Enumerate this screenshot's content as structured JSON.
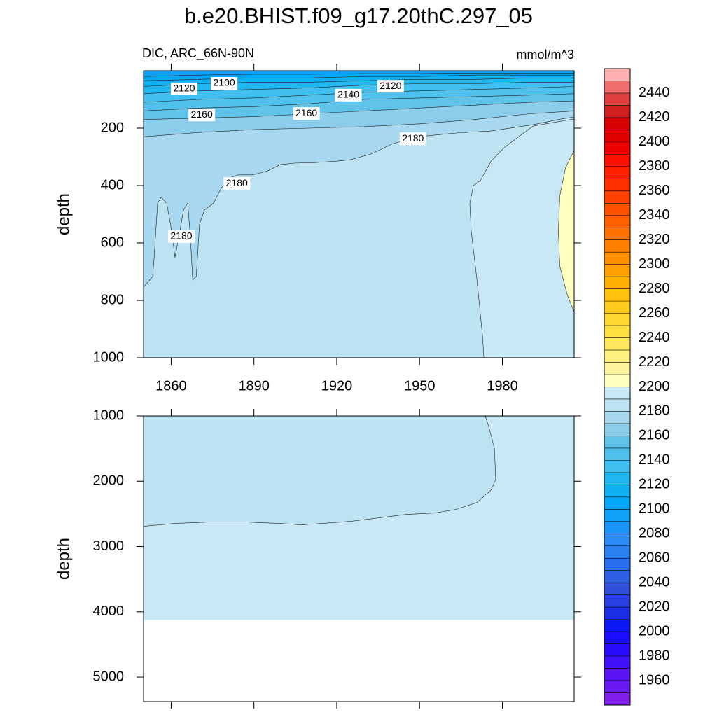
{
  "title": "b.e20.BHIST.f09_g17.20thC.297_05",
  "subtitle": "DIC, ARC_66N-90N",
  "units": "mmol/m^3",
  "chart_data": [
    {
      "type": "contour",
      "ylabel": "depth",
      "xlim": [
        1850,
        2006
      ],
      "xticks": [
        1860,
        1890,
        1920,
        1950,
        1980
      ],
      "show_xtick_labels": true,
      "ylim": [
        0,
        1000
      ],
      "yticks": [
        200,
        400,
        600,
        800,
        1000
      ],
      "fills": [
        {
          "level": 2180,
          "x": [
            1850,
            2006,
            2006,
            1850
          ],
          "y": [
            0,
            0,
            1000,
            1000
          ]
        },
        {
          "level": 2190,
          "x": [
            1973.3,
            1972.8,
            1970.8,
            1968.7,
            1968.2,
            1969.5,
            1972,
            1975.9,
            1980.9,
            1986,
            1991.1,
            1998.7,
            2006,
            2006
          ],
          "y": [
            1000,
            924,
            729,
            559,
            461,
            400,
            383,
            315,
            266,
            229,
            193,
            180,
            168,
            1000
          ]
        },
        {
          "level": 2200,
          "x": [
            2006,
            2002.9,
            2000.8,
            2000.3,
            2000.8,
            2003.4,
            2006
          ],
          "y": [
            278,
            337,
            436,
            559,
            680,
            778,
            841
          ]
        },
        {
          "level": 2170,
          "x": [
            1850,
            1853.3,
            1853.8,
            1855.1,
            1856.4,
            1858.4,
            1860.2,
            1861.4,
            1862.7,
            1864.5,
            1866,
            1867,
            1867.8,
            1869.1,
            1870.3,
            1872.1,
            1875.4,
            1878,
            1880.5,
            1884.3,
            1889.4,
            1894.5,
            1899.6,
            1904.7,
            1912.3,
            1919.9,
            1925,
            1932.6,
            1940.3,
            1950.4,
            1963.1,
            1975.9,
            1991.1,
            2001.3,
            2006,
            2006,
            1850
          ],
          "y": [
            754,
            717,
            656,
            461,
            441,
            461,
            559,
            651,
            583,
            485,
            461,
            583,
            729,
            717,
            534,
            485,
            461,
            412,
            376,
            363,
            363,
            351,
            327,
            322,
            320,
            315,
            310,
            290,
            254,
            229,
            217,
            210,
            188,
            168,
            161,
            0,
            0
          ]
        },
        {
          "level": 2160,
          "x": [
            1850,
            1870,
            1890,
            1910,
            1930,
            1950,
            1970,
            1990,
            2006,
            2006,
            1850
          ],
          "y": [
            230,
            215,
            205,
            200,
            195,
            185,
            170,
            150,
            140,
            0,
            0
          ]
        },
        {
          "level": 2150,
          "x": [
            1850,
            1870,
            1890,
            1910,
            1930,
            1950,
            1970,
            1990,
            2006,
            2006,
            1850
          ],
          "y": [
            170,
            165,
            160,
            150,
            140,
            130,
            120,
            110,
            105,
            0,
            0
          ]
        },
        {
          "level": 2140,
          "x": [
            1850,
            1870,
            1890,
            1910,
            1930,
            1950,
            1970,
            1990,
            2006,
            2006,
            1850
          ],
          "y": [
            140,
            130,
            125,
            115,
            100,
            95,
            90,
            85,
            80,
            0,
            0
          ]
        },
        {
          "level": 2130,
          "x": [
            1850,
            1870,
            1890,
            1910,
            1930,
            1950,
            1970,
            1990,
            2006,
            2006,
            1850
          ],
          "y": [
            110,
            100,
            95,
            85,
            75,
            70,
            65,
            60,
            55,
            0,
            0
          ]
        },
        {
          "level": 2120,
          "x": [
            1850,
            1870,
            1890,
            1910,
            1930,
            1950,
            1970,
            1990,
            2006,
            2006,
            1850
          ],
          "y": [
            80,
            70,
            65,
            60,
            50,
            45,
            45,
            40,
            40,
            0,
            0
          ]
        },
        {
          "level": 2110,
          "x": [
            1850,
            1870,
            1890,
            1910,
            1930,
            1950,
            1970,
            1990,
            2006,
            2006,
            1850
          ],
          "y": [
            55,
            45,
            40,
            40,
            35,
            30,
            30,
            25,
            25,
            0,
            0
          ]
        },
        {
          "level": 2100,
          "x": [
            1850,
            1870,
            1890,
            1910,
            1930,
            1950,
            1970,
            1990,
            2006,
            2006,
            1850
          ],
          "y": [
            35,
            30,
            25,
            25,
            20,
            20,
            15,
            15,
            15,
            0,
            0
          ]
        },
        {
          "level": 2090,
          "x": [
            1850,
            1870,
            1890,
            1910,
            1930,
            1950,
            1970,
            1990,
            2006,
            2006,
            1850
          ],
          "y": [
            20,
            15,
            12,
            12,
            10,
            10,
            8,
            8,
            8,
            0,
            0
          ]
        }
      ],
      "labels": [
        {
          "level": 2100,
          "x": 1879.2,
          "y": 44
        },
        {
          "level": 2120,
          "x": 1864.7,
          "y": 63
        },
        {
          "level": 2140,
          "x": 1924.2,
          "y": 85
        },
        {
          "level": 2120,
          "x": 1939.5,
          "y": 54
        },
        {
          "level": 2160,
          "x": 1871.1,
          "y": 154
        },
        {
          "level": 2160,
          "x": 1909,
          "y": 149
        },
        {
          "level": 2180,
          "x": 1947.6,
          "y": 237
        },
        {
          "level": 2180,
          "x": 1883.8,
          "y": 393
        },
        {
          "level": 2180,
          "x": 1863.7,
          "y": 578
        }
      ]
    },
    {
      "type": "contour",
      "ylabel": "depth",
      "xlim": [
        1850,
        2006
      ],
      "xticks": [
        1860,
        1890,
        1920,
        1950,
        1980
      ],
      "show_xtick_labels": false,
      "ylim": [
        1000,
        5375
      ],
      "yticks": [
        1000,
        2000,
        3000,
        4000,
        5000
      ],
      "fills": [
        {
          "level": 2190,
          "x": [
            1850,
            2006,
            2006,
            1850
          ],
          "y": [
            1000,
            1000,
            4125,
            4125
          ]
        },
        {
          "level": 2180,
          "x": [
            1850,
            1861.4,
            1874.2,
            1886.9,
            1899.6,
            1907.2,
            1914.8,
            1925,
            1935.2,
            1945.3,
            1955.5,
            1963.1,
            1970.8,
            1975.9,
            1977.6,
            1977.1,
            1975.1,
            1973.8,
            1850
          ],
          "y": [
            2690,
            2647,
            2626,
            2626,
            2647,
            2668,
            2647,
            2615,
            2561,
            2508,
            2487,
            2433,
            2326,
            2134,
            1973,
            1492,
            1171,
            1000,
            1000
          ]
        }
      ],
      "labels": []
    }
  ],
  "colorbar": {
    "levels": [
      1950,
      1960,
      1970,
      1980,
      1990,
      2000,
      2010,
      2020,
      2030,
      2040,
      2050,
      2060,
      2070,
      2080,
      2090,
      2100,
      2110,
      2120,
      2130,
      2140,
      2150,
      2160,
      2170,
      2180,
      2190,
      2200,
      2210,
      2220,
      2230,
      2240,
      2250,
      2260,
      2270,
      2280,
      2290,
      2300,
      2310,
      2320,
      2330,
      2340,
      2350,
      2360,
      2370,
      2380,
      2390,
      2400,
      2410,
      2420,
      2430,
      2440,
      2450
    ],
    "ticks": [
      1960,
      1980,
      2000,
      2020,
      2040,
      2060,
      2080,
      2100,
      2120,
      2140,
      2160,
      2180,
      2200,
      2220,
      2240,
      2260,
      2280,
      2300,
      2320,
      2340,
      2360,
      2380,
      2400,
      2420,
      2440
    ],
    "colors": [
      "#7f1fe8",
      "#6a1af0",
      "#5a14f5",
      "#4010f8",
      "#2a0cfa",
      "#1a0cfc",
      "#0a18f5",
      "#1a2ee6",
      "#2a40e0",
      "#3050dc",
      "#2e60e4",
      "#2a70ec",
      "#2a80f0",
      "#2a8cf4",
      "#1a94f6",
      "#10a0f8",
      "#00a8f8",
      "#10b0f4",
      "#20b8f0",
      "#40c0f0",
      "#50c0ec",
      "#60c4ea",
      "#8ccdeb",
      "#a8d8ef",
      "#bde3f3",
      "#c8e8f6",
      "#ffffc0",
      "#fff4a0",
      "#fff080",
      "#ffe860",
      "#ffe040",
      "#ffd830",
      "#ffcc20",
      "#ffc010",
      "#ffb000",
      "#ffa000",
      "#ff9000",
      "#ff8000",
      "#ff7000",
      "#ff6000",
      "#ff5000",
      "#ff4000",
      "#ff3000",
      "#ff2000",
      "#ff1000",
      "#f00000",
      "#e00000",
      "#d80000",
      "#d02020",
      "#e04040",
      "#f07070",
      "#ffb0b0"
    ]
  }
}
